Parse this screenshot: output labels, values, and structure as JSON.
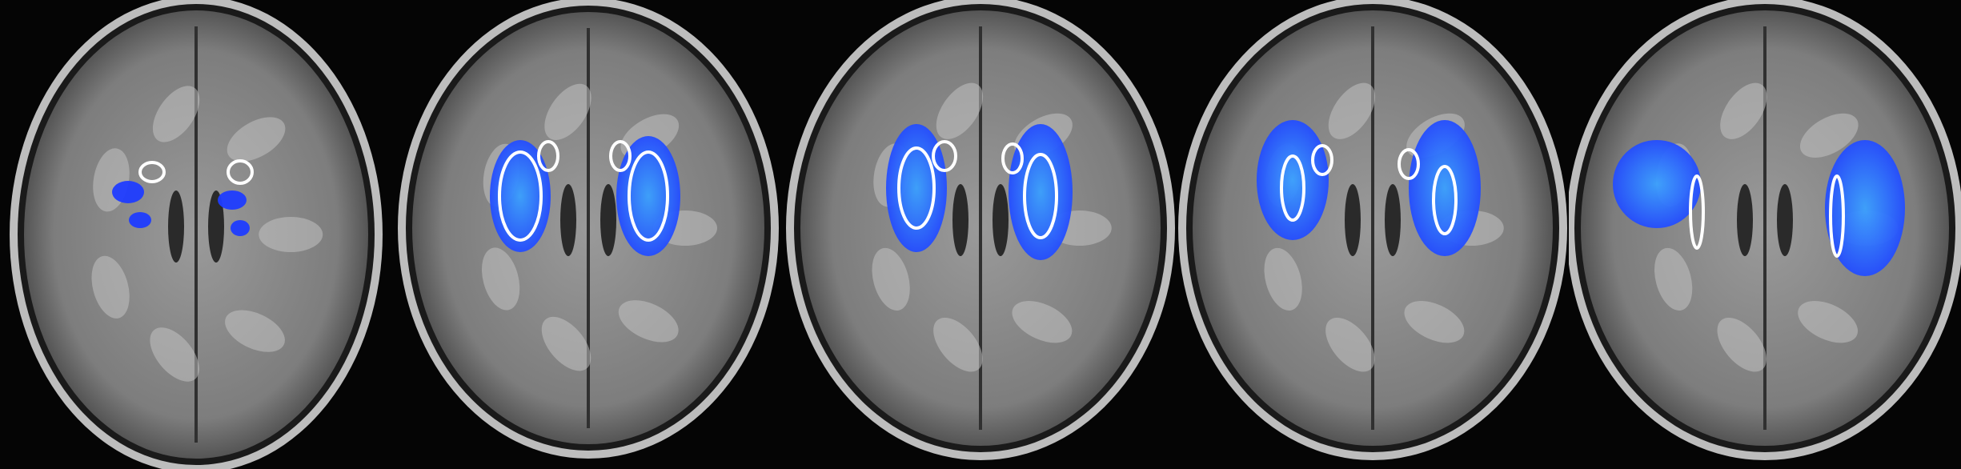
{
  "image": {
    "description_type": "axial-brain-mri-montage",
    "panel_count": 5,
    "background_color": "#000000",
    "overlay_color": "#1f3cff",
    "overlay_core_color": "#3aa0ff",
    "outline_color": "#ffffff"
  },
  "panels": [
    {
      "id": "slice-1",
      "overlay_level": 0.15
    },
    {
      "id": "slice-2",
      "overlay_level": 0.55
    },
    {
      "id": "slice-3",
      "overlay_level": 0.5
    },
    {
      "id": "slice-4",
      "overlay_level": 0.6
    },
    {
      "id": "slice-5",
      "overlay_level": 0.85
    }
  ]
}
